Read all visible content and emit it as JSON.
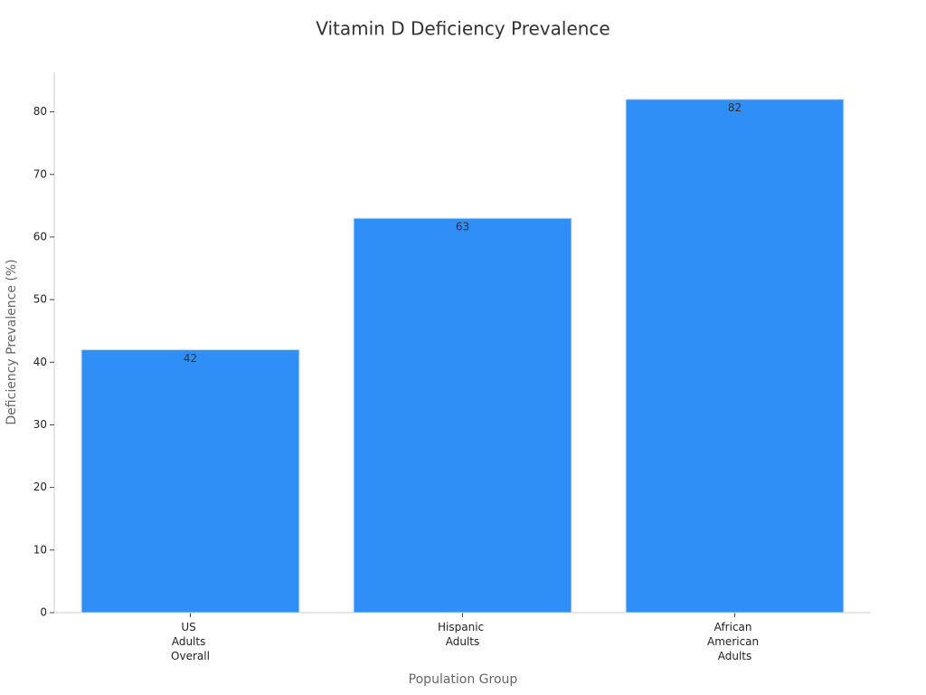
{
  "chart_data": {
    "type": "bar",
    "title": "Vitamin D Deficiency Prevalence",
    "x_label": "Population Group",
    "y_label": "Deficiency Prevalence (%)",
    "categories": [
      "US Adults Overall",
      "Hispanic Adults",
      "African American Adults"
    ],
    "values": [
      42,
      63,
      82
    ],
    "color": "#2f8ff7",
    "ylim": [
      0,
      86.3
    ],
    "yticks": [
      0,
      10,
      20,
      30,
      40,
      50,
      60,
      70,
      80
    ],
    "grid": false
  }
}
